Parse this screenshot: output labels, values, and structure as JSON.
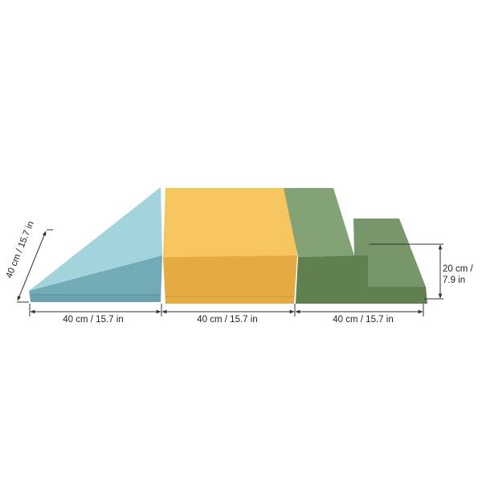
{
  "colors": {
    "wedge_top": "#9fd0d8",
    "wedge_side": "#6fa9b4",
    "box_top": "#f4c35e",
    "box_front": "#e4a940",
    "step_top": "#7f9f72",
    "step_front": "#5f7f52",
    "dimension_line": "#333333"
  },
  "products": [
    {
      "name": "wedge",
      "color": "light blue"
    },
    {
      "name": "cube",
      "color": "mustard yellow"
    },
    {
      "name": "steps",
      "color": "sage green"
    }
  ],
  "dimensions": {
    "wedge_width": "40 cm / 15.7 in",
    "cube_width": "40 cm / 15.7 in",
    "steps_width": "40 cm / 15.7 in",
    "wedge_depth": "40 cm / 15.7 in",
    "step_height_line1": "20 cm /",
    "step_height_line2": "7.9 in"
  }
}
